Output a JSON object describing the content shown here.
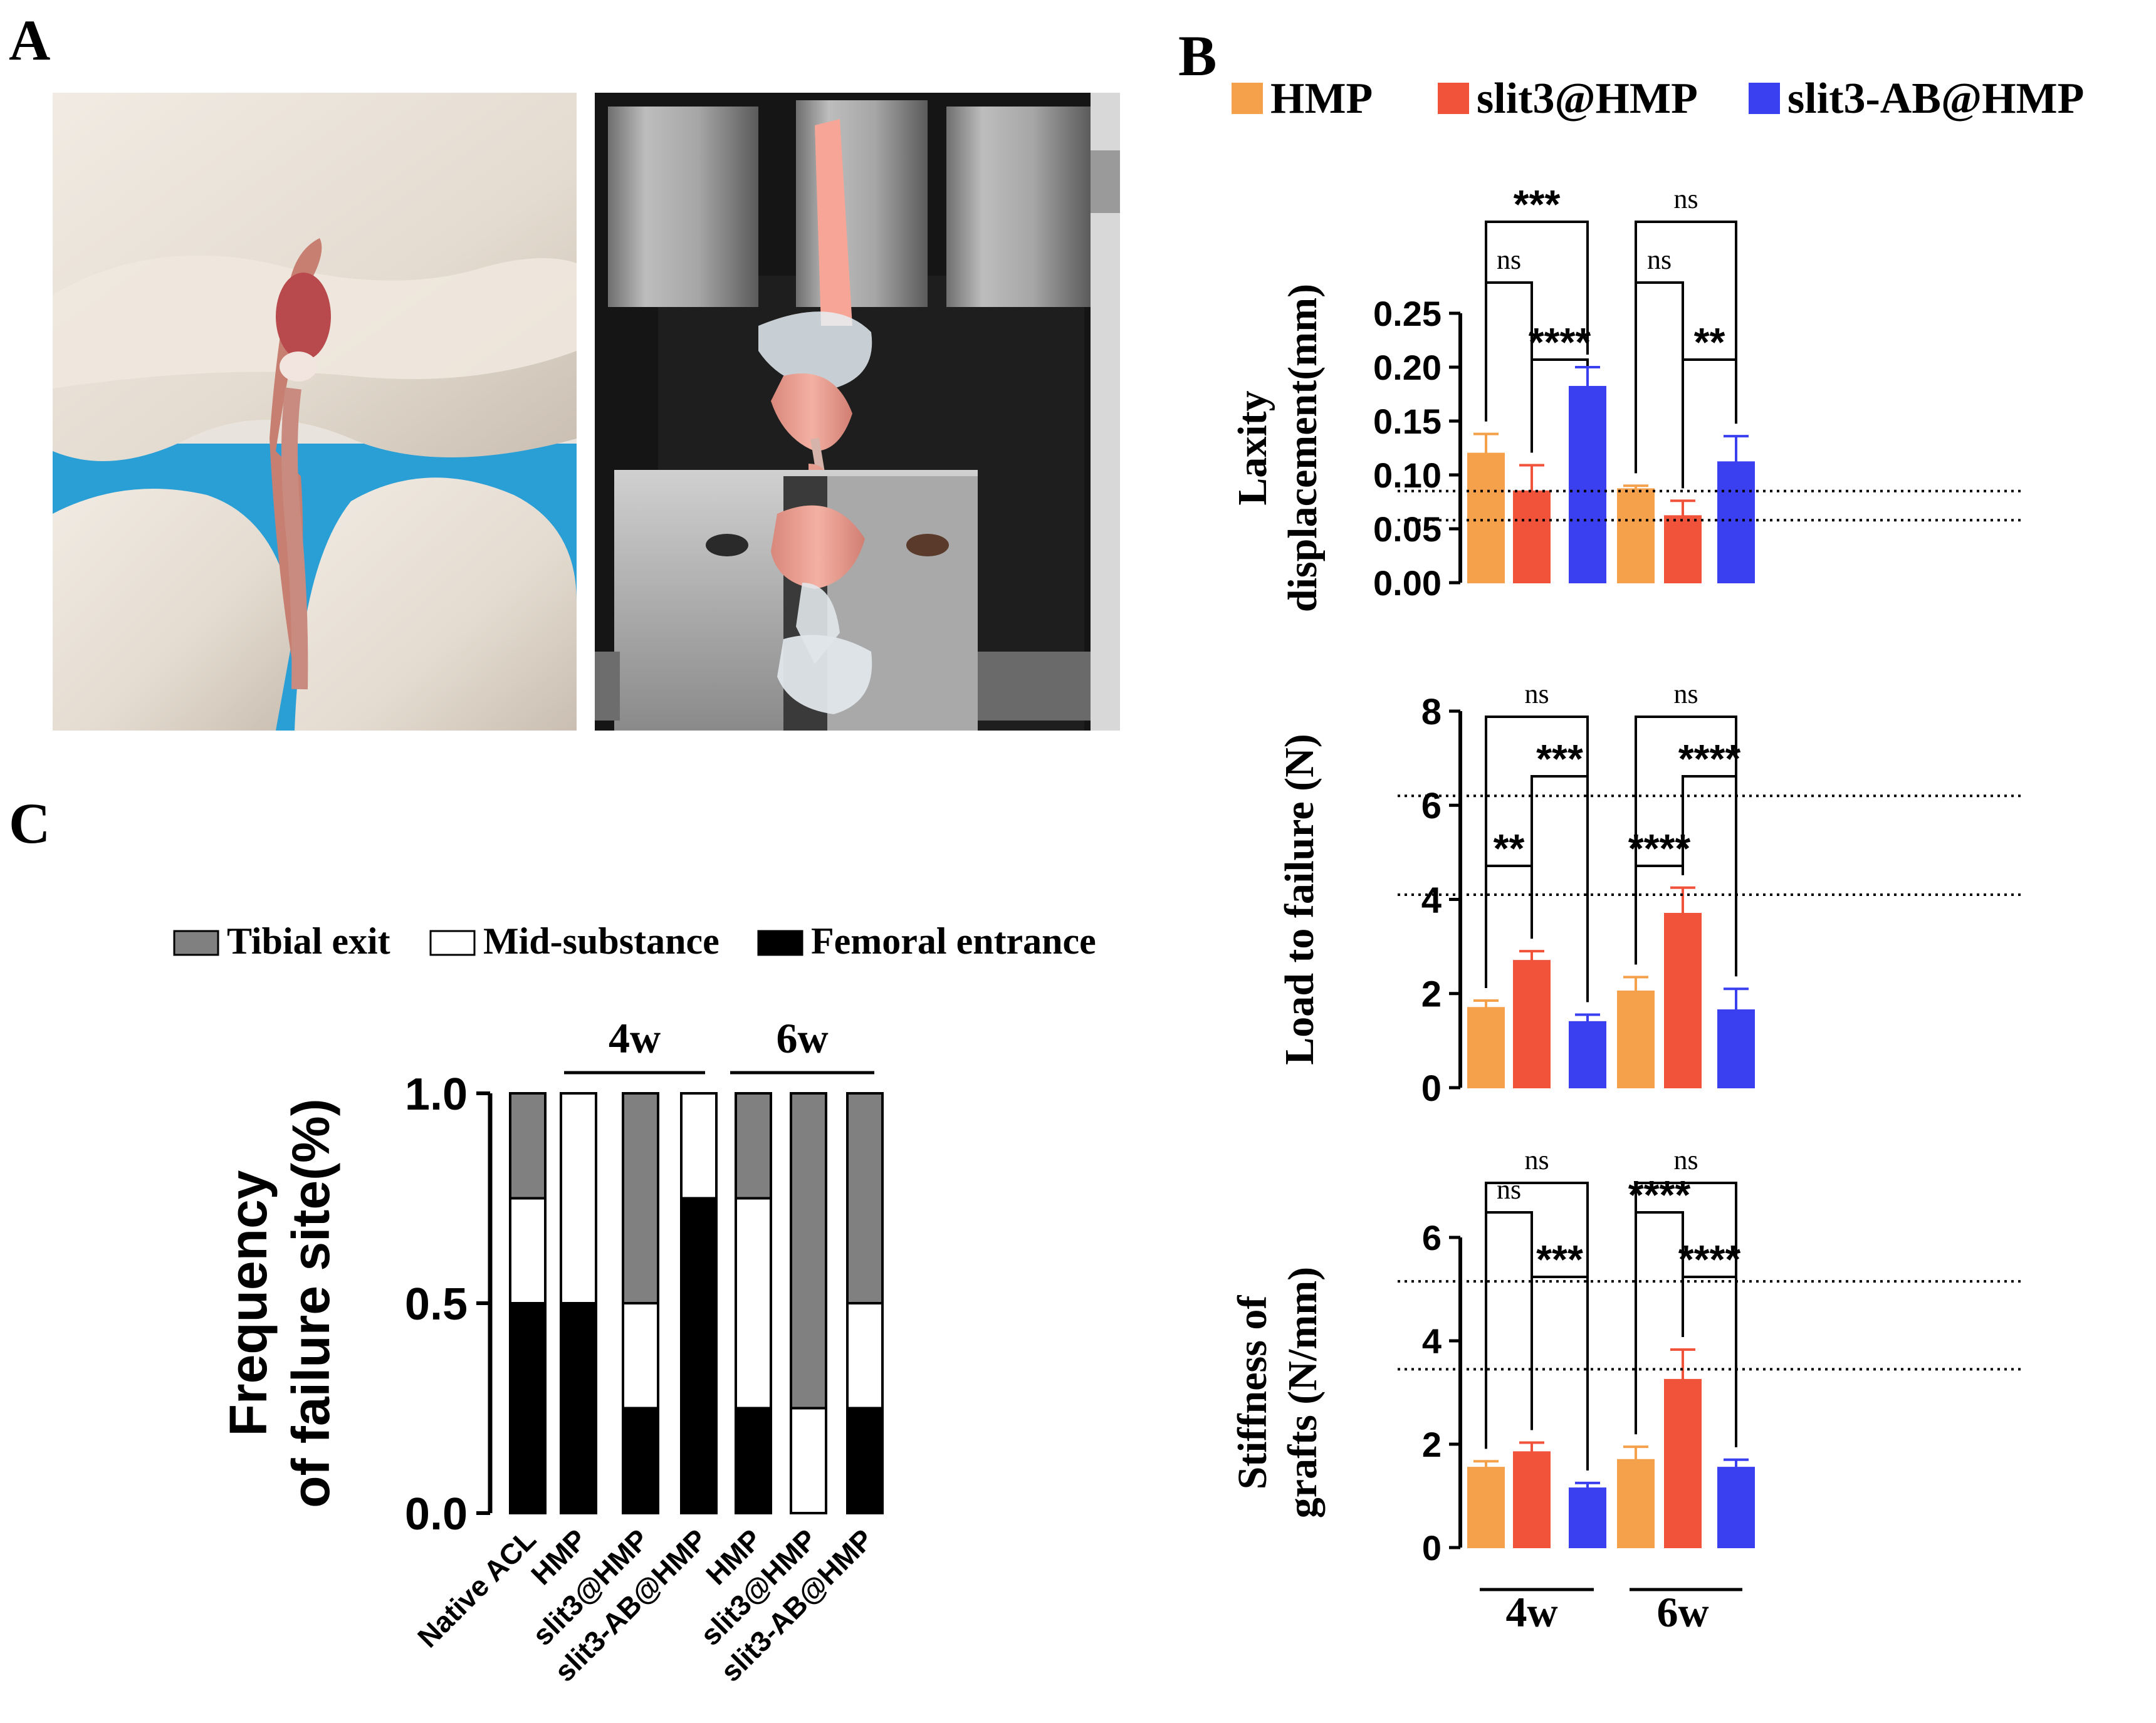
{
  "panel_labels": {
    "a": "A",
    "b": "B",
    "c": "C"
  },
  "colors": {
    "hmp": "#f5a04a",
    "slit3": "#f0533a",
    "slit3ab": "#3a3ff0",
    "tibial": "#808080",
    "mid": "#ffffff",
    "femoral": "#000000"
  },
  "panel_b": {
    "legend": [
      "HMP",
      "slit3@HMP",
      "slit3-AB@HMP"
    ],
    "group_labels": [
      "4w",
      "6w"
    ]
  },
  "panel_c": {
    "legend": [
      "Tibial exit",
      "Mid-substance",
      "Femoral entrance"
    ],
    "group_labels": [
      "4w",
      "6w"
    ]
  },
  "chart_data": [
    {
      "type": "bar",
      "panel": "B",
      "ylabel": [
        "Laxity",
        "displacement(mm)"
      ],
      "ylim": [
        0,
        0.25
      ],
      "yticks": [
        "0.00",
        "0.05",
        "0.10",
        "0.15",
        "0.20",
        "0.25"
      ],
      "groups": [
        "4w",
        "6w"
      ],
      "series": [
        {
          "name": "HMP",
          "values": [
            0.12,
            0.087
          ],
          "errors": [
            0.018,
            0.003
          ]
        },
        {
          "name": "slit3@HMP",
          "values": [
            0.085,
            0.062
          ],
          "errors": [
            0.024,
            0.014
          ]
        },
        {
          "name": "slit3-AB@HMP",
          "values": [
            0.182,
            0.112
          ],
          "errors": [
            0.018,
            0.024
          ]
        }
      ],
      "reference_lines": [
        0.085,
        0.058
      ],
      "significance": [
        {
          "group": "4w",
          "from": "HMP",
          "to": "slit3-AB@HMP",
          "label": "***",
          "tier": 3
        },
        {
          "group": "4w",
          "from": "HMP",
          "to": "slit3@HMP",
          "label": "ns",
          "tier": 2
        },
        {
          "group": "4w",
          "from": "slit3@HMP",
          "to": "slit3-AB@HMP",
          "label": "****",
          "tier": 1
        },
        {
          "group": "6w",
          "from": "HMP",
          "to": "slit3-AB@HMP",
          "label": "ns",
          "tier": 3
        },
        {
          "group": "6w",
          "from": "HMP",
          "to": "slit3@HMP",
          "label": "ns",
          "tier": 2
        },
        {
          "group": "6w",
          "from": "slit3@HMP",
          "to": "slit3-AB@HMP",
          "label": "**",
          "tier": 1
        }
      ]
    },
    {
      "type": "bar",
      "panel": "B",
      "ylabel": [
        "Load to failure (N)"
      ],
      "ylim": [
        0,
        8
      ],
      "yticks": [
        "0",
        "2",
        "4",
        "6",
        "8"
      ],
      "groups": [
        "4w",
        "6w"
      ],
      "series": [
        {
          "name": "HMP",
          "values": [
            1.7,
            2.05
          ],
          "errors": [
            0.15,
            0.3
          ]
        },
        {
          "name": "slit3@HMP",
          "values": [
            2.7,
            3.7
          ],
          "errors": [
            0.2,
            0.55
          ]
        },
        {
          "name": "slit3-AB@HMP",
          "values": [
            1.4,
            1.65
          ],
          "errors": [
            0.15,
            0.45
          ]
        }
      ],
      "reference_lines": [
        6.2,
        4.1
      ],
      "significance": [
        {
          "group": "4w",
          "from": "HMP",
          "to": "slit3-AB@HMP",
          "label": "ns",
          "tier": 3
        },
        {
          "group": "4w",
          "from": "slit3@HMP",
          "to": "slit3-AB@HMP",
          "label": "***",
          "tier": 2
        },
        {
          "group": "4w",
          "from": "HMP",
          "to": "slit3@HMP",
          "label": "**",
          "tier": 1
        },
        {
          "group": "6w",
          "from": "HMP",
          "to": "slit3-AB@HMP",
          "label": "ns",
          "tier": 3
        },
        {
          "group": "6w",
          "from": "slit3@HMP",
          "to": "slit3-AB@HMP",
          "label": "****",
          "tier": 2
        },
        {
          "group": "6w",
          "from": "HMP",
          "to": "slit3@HMP",
          "label": "****",
          "tier": 1
        }
      ]
    },
    {
      "type": "bar",
      "panel": "B",
      "ylabel": [
        "Stiffness of",
        "grafts (N/mm)"
      ],
      "ylim": [
        0,
        6
      ],
      "yticks": [
        "0",
        "2",
        "4",
        "6"
      ],
      "groups": [
        "4w",
        "6w"
      ],
      "series": [
        {
          "name": "HMP",
          "values": [
            1.55,
            1.7
          ],
          "errors": [
            0.12,
            0.25
          ]
        },
        {
          "name": "slit3@HMP",
          "values": [
            1.85,
            3.25
          ],
          "errors": [
            0.18,
            0.58
          ]
        },
        {
          "name": "slit3-AB@HMP",
          "values": [
            1.15,
            1.55
          ],
          "errors": [
            0.1,
            0.15
          ]
        }
      ],
      "reference_lines": [
        5.15,
        3.45
      ],
      "significance": [
        {
          "group": "4w",
          "from": "HMP",
          "to": "slit3-AB@HMP",
          "label": "ns",
          "tier": 3
        },
        {
          "group": "4w",
          "from": "HMP",
          "to": "slit3@HMP",
          "label": "ns",
          "tier": 2
        },
        {
          "group": "4w",
          "from": "slit3@HMP",
          "to": "slit3-AB@HMP",
          "label": "***",
          "tier": 1
        },
        {
          "group": "6w",
          "from": "HMP",
          "to": "slit3-AB@HMP",
          "label": "ns",
          "tier": 3
        },
        {
          "group": "6w",
          "from": "HMP",
          "to": "slit3@HMP",
          "label": "****",
          "tier": 2
        },
        {
          "group": "6w",
          "from": "slit3@HMP",
          "to": "slit3-AB@HMP",
          "label": "****",
          "tier": 1
        }
      ],
      "xgroup_labels": [
        "4w",
        "6w"
      ]
    },
    {
      "type": "bar",
      "stacked": true,
      "panel": "C",
      "ylabel": [
        "Frequency",
        "of failure site(%)"
      ],
      "ylim": [
        0,
        1
      ],
      "yticks": [
        "0.0",
        "0.5",
        "1.0"
      ],
      "categories": [
        "Native ACL",
        "HMP",
        "slit3@HMP",
        "slit3-AB@HMP",
        "HMP",
        "slit3@HMP",
        "slit3-AB@HMP"
      ],
      "series": [
        {
          "name": "Femoral entrance",
          "values": [
            0.5,
            0.5,
            0.25,
            0.75,
            0.25,
            0.0,
            0.25
          ]
        },
        {
          "name": "Mid-substance",
          "values": [
            0.25,
            0.5,
            0.25,
            0.25,
            0.5,
            0.25,
            0.25
          ]
        },
        {
          "name": "Tibial exit",
          "values": [
            0.25,
            0.0,
            0.5,
            0.0,
            0.25,
            0.75,
            0.5
          ]
        }
      ]
    }
  ]
}
